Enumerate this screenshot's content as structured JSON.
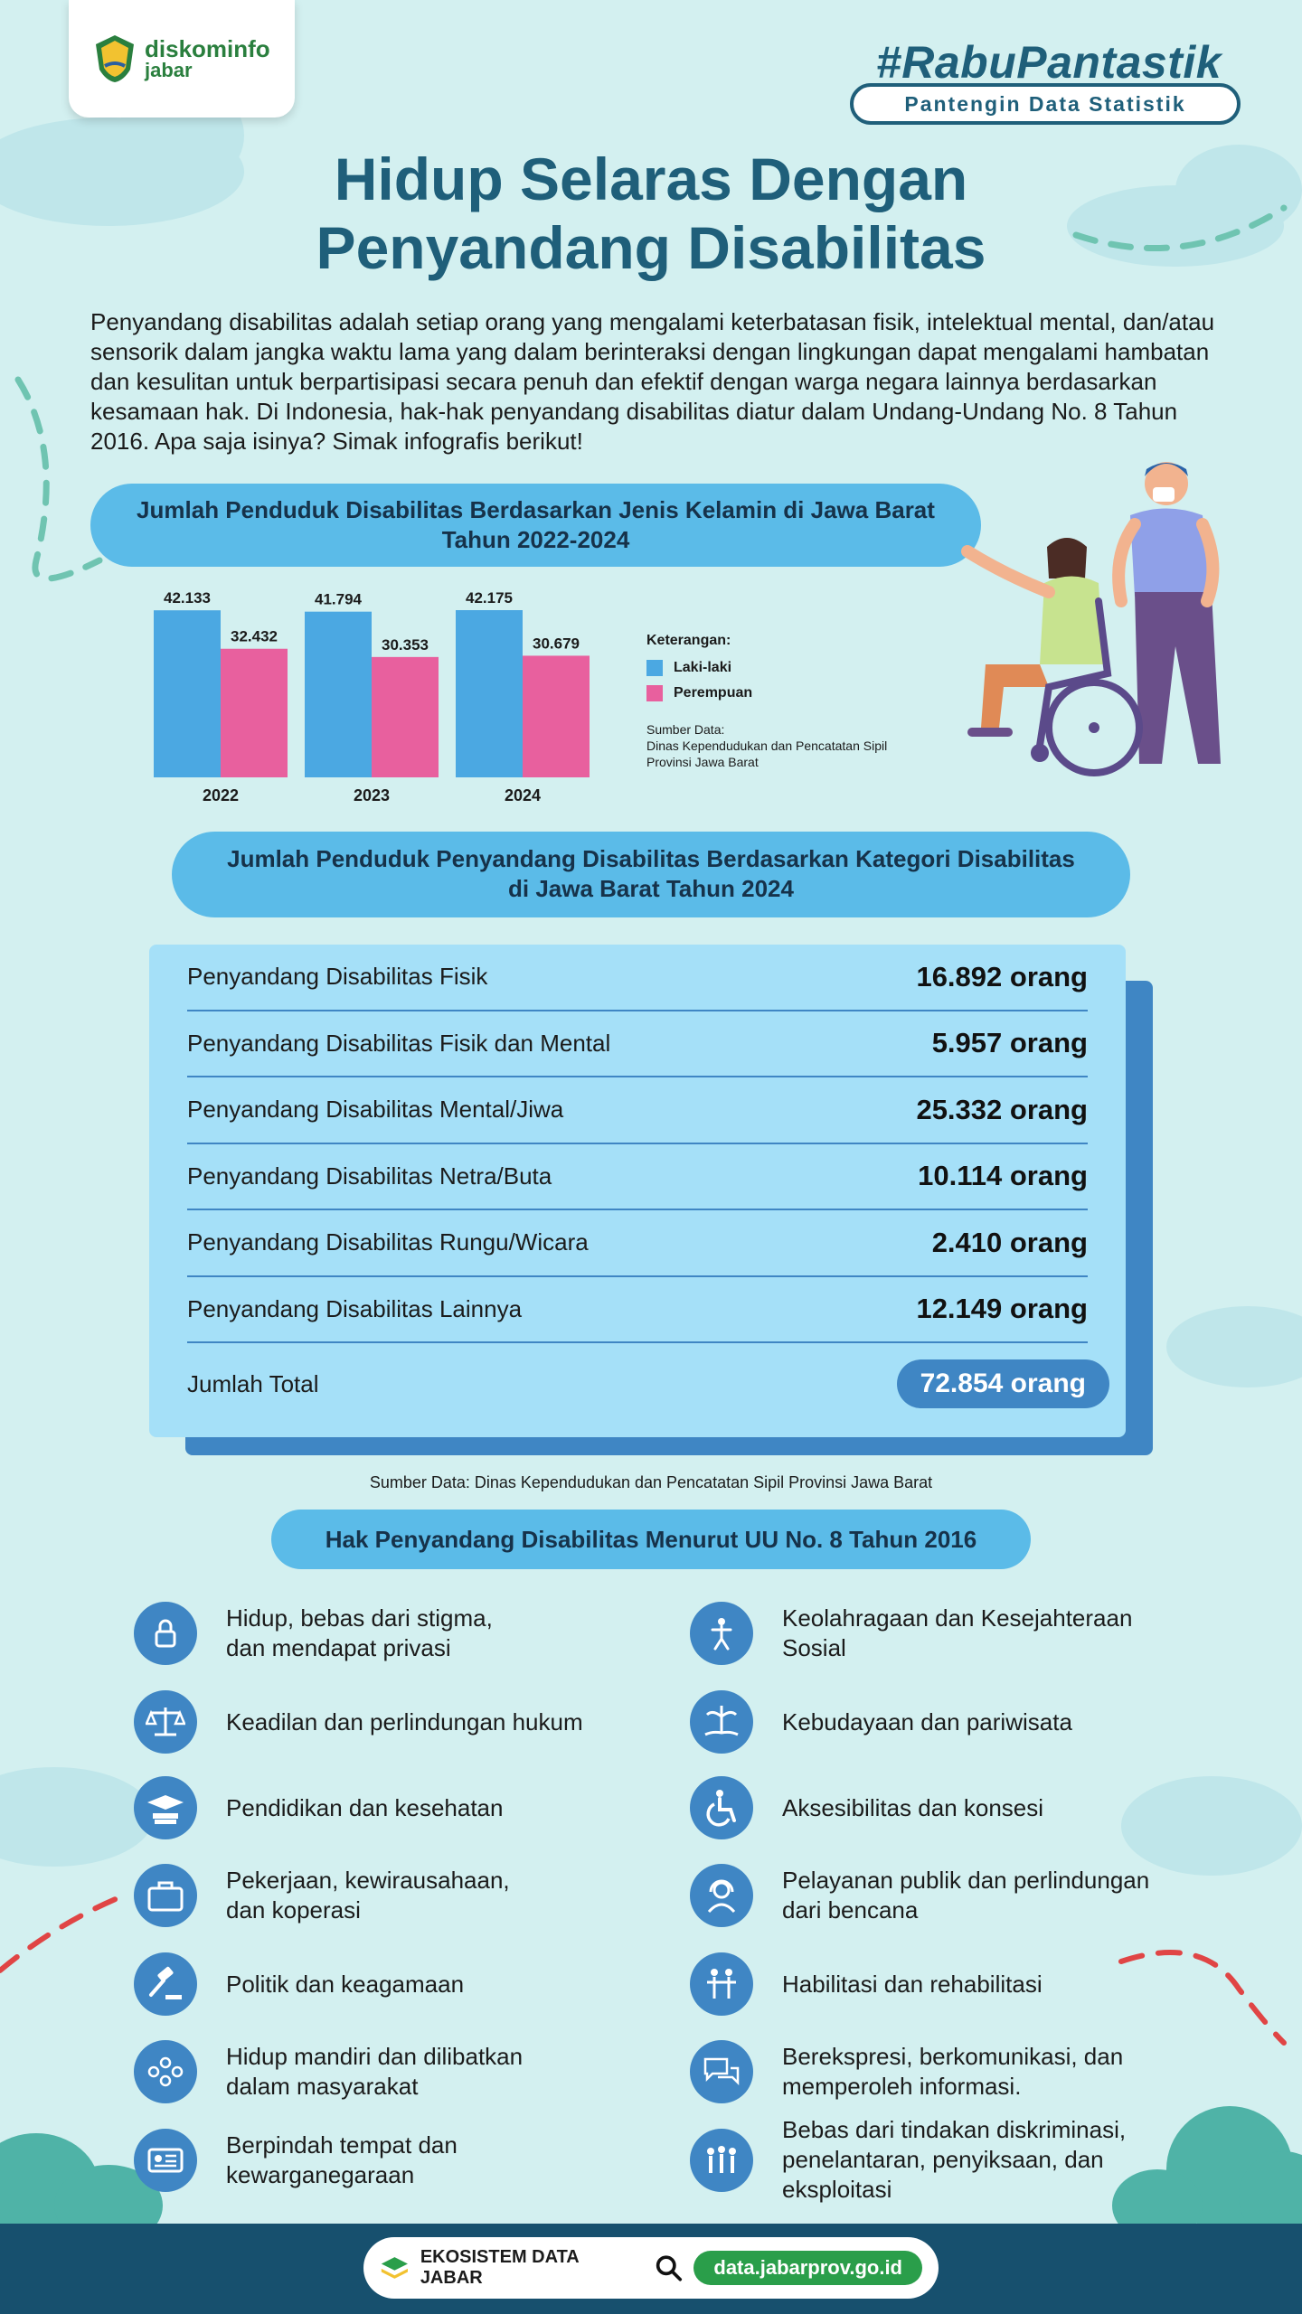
{
  "logo": {
    "brand": "diskominfo",
    "region": "jabar"
  },
  "campaign": {
    "hashtag": "#RabuPantastik",
    "tagline": "Pantengin Data Statistik"
  },
  "title": {
    "line1": "Hidup Selaras Dengan",
    "line2": "Penyandang Disabilitas"
  },
  "intro": "Penyandang disabilitas adalah setiap orang yang mengalami keterbatasan fisik, intelektual mental, dan/atau sensorik dalam jangka waktu lama yang dalam berinteraksi dengan lingkungan dapat mengalami hambatan dan kesulitan untuk berpartisipasi secara penuh dan efektif dengan warga negara lainnya berdasarkan kesamaan hak. Di Indonesia, hak-hak penyandang disabilitas diatur dalam Undang-Undang No. 8 Tahun 2016. Apa saja isinya? Simak infografis berikut!",
  "section1": {
    "line1": "Jumlah Penduduk Disabilitas Berdasarkan Jenis Kelamin di Jawa Barat",
    "line2": "Tahun 2022-2024"
  },
  "chart_data": {
    "type": "bar",
    "categories": [
      "2022",
      "2023",
      "2024"
    ],
    "series": [
      {
        "name": "Laki-laki",
        "values": [
          42133,
          41794,
          42175
        ],
        "labels": [
          "42.133",
          "41.794",
          "42.175"
        ],
        "color": "#4ba8e2"
      },
      {
        "name": "Perempuan",
        "values": [
          32432,
          30353,
          30679
        ],
        "labels": [
          "32.432",
          "30.353",
          "30.679"
        ],
        "color": "#e8609e"
      }
    ],
    "legend_title": "Keterangan:",
    "source": [
      "Sumber Data:",
      "Dinas Kependudukan dan Pencatatan Sipil",
      "Provinsi Jawa Barat"
    ],
    "grid": false,
    "legend_position": "right"
  },
  "section2": {
    "line1": "Jumlah Penduduk Penyandang Disabilitas Berdasarkan Kategori Disabilitas",
    "line2": "di Jawa Barat Tahun 2024"
  },
  "categories": [
    {
      "label": "Penyandang Disabilitas Fisik",
      "value": "16.892 orang"
    },
    {
      "label": "Penyandang Disabilitas Fisik dan Mental",
      "value": "5.957 orang"
    },
    {
      "label": "Penyandang Disabilitas Mental/Jiwa",
      "value": "25.332 orang"
    },
    {
      "label": "Penyandang Disabilitas Netra/Buta",
      "value": "10.114 orang"
    },
    {
      "label": "Penyandang Disabilitas Rungu/Wicara",
      "value": "2.410 orang"
    },
    {
      "label": "Penyandang Disabilitas Lainnya",
      "value": "12.149 orang"
    }
  ],
  "total": {
    "label": "Jumlah Total",
    "value": "72.854 orang"
  },
  "table_source": "Sumber Data: Dinas Kependudukan dan Pencatatan Sipil Provinsi Jawa Barat",
  "section3": "Hak Penyandang Disabilitas Menurut UU No. 8 Tahun 2016",
  "rights_left": [
    {
      "icon": "privacy-icon",
      "line1": "Hidup, bebas dari stigma,",
      "line2": "dan mendapat privasi"
    },
    {
      "icon": "justice-scale-icon",
      "line1": "Keadilan dan perlindungan hukum",
      "line2": ""
    },
    {
      "icon": "education-icon",
      "line1": "Pendidikan dan kesehatan",
      "line2": ""
    },
    {
      "icon": "briefcase-icon",
      "line1": "Pekerjaan, kewirausahaan,",
      "line2": "dan koperasi"
    },
    {
      "icon": "gavel-icon",
      "line1": "Politik dan keagamaan",
      "line2": ""
    },
    {
      "icon": "community-icon",
      "line1": "Hidup mandiri dan dilibatkan",
      "line2": "dalam masyarakat"
    },
    {
      "icon": "id-card-icon",
      "line1": "Berpindah tempat dan",
      "line2": "kewarganegaraan"
    }
  ],
  "rights_right": [
    {
      "icon": "sports-icon",
      "line1": "Keolahragaan dan Kesejahteraan",
      "line2": "Sosial",
      "line3": ""
    },
    {
      "icon": "island-icon",
      "line1": "Kebudayaan dan pariwisata",
      "line2": "",
      "line3": ""
    },
    {
      "icon": "wheelchair-icon",
      "line1": "Aksesibilitas dan konsesi",
      "line2": "",
      "line3": ""
    },
    {
      "icon": "customer-service-icon",
      "line1": "Pelayanan publik dan perlindungan",
      "line2": "dari bencana",
      "line3": ""
    },
    {
      "icon": "rehabilitation-icon",
      "line1": "Habilitasi dan rehabilitasi",
      "line2": "",
      "line3": ""
    },
    {
      "icon": "chat-bubbles-icon",
      "line1": "Berekspresi, berkomunikasi, dan",
      "line2": "memperoleh informasi.",
      "line3": ""
    },
    {
      "icon": "people-protect-icon",
      "line1": "Bebas dari tindakan diskriminasi,",
      "line2": "penelantaran, penyiksaan, dan",
      "line3": "eksploitasi"
    }
  ],
  "footer": {
    "ecosystem": "EKOSISTEM DATA JABAR",
    "url": "data.jabarprov.go.id"
  }
}
